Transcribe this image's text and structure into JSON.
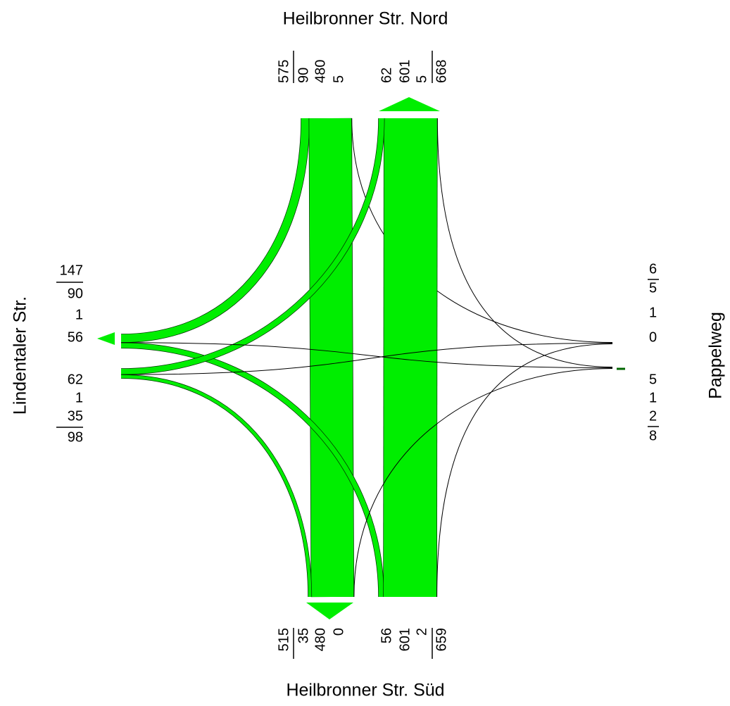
{
  "north": {
    "label": "Heilbronner Str. Nord",
    "entering": {
      "total": 575,
      "values": [
        90,
        480,
        5
      ]
    },
    "exiting": {
      "values": [
        62,
        601,
        5
      ],
      "total": 668
    }
  },
  "south": {
    "label": "Heilbronner Str. Süd",
    "exiting": {
      "total": 515,
      "values": [
        35,
        480,
        0
      ]
    },
    "entering": {
      "values": [
        56,
        601,
        2
      ],
      "total": 659
    }
  },
  "west": {
    "label": "Lindentaler Str.",
    "exiting": {
      "total": 147,
      "values": [
        90,
        1,
        56
      ]
    },
    "entering": {
      "values": [
        62,
        1,
        35
      ],
      "total": 98
    }
  },
  "east": {
    "label": "Pappelweg",
    "exiting": {
      "total": 6,
      "values": [
        5,
        1,
        0
      ]
    },
    "entering": {
      "values": [
        5,
        1,
        2
      ],
      "total": 8
    }
  }
}
